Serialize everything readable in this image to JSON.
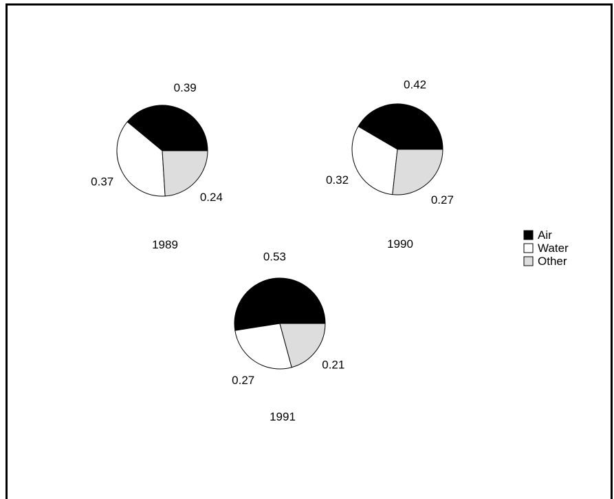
{
  "chart_data": {
    "type": "pie",
    "categories": [
      "Air",
      "Water",
      "Other"
    ],
    "colors": {
      "Air": "#000000",
      "Water": "#ffffff",
      "Other": "#dddddd"
    },
    "legend": {
      "position": "right",
      "entries": [
        "Air",
        "Water",
        "Other"
      ]
    },
    "series": [
      {
        "name": "1989",
        "values": [
          0.39,
          0.37,
          0.24
        ],
        "labels": [
          "0.39",
          "0.37",
          "0.24"
        ]
      },
      {
        "name": "1990",
        "values": [
          0.42,
          0.32,
          0.27
        ],
        "labels": [
          "0.42",
          "0.32",
          "0.27"
        ]
      },
      {
        "name": "1991",
        "values": [
          0.53,
          0.27,
          0.21
        ],
        "labels": [
          "0.53",
          "0.27",
          "0.21"
        ]
      }
    ]
  }
}
